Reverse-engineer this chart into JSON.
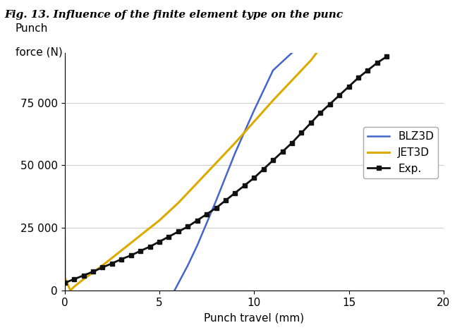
{
  "title": "Fig. 13. Influence of the finite element type on the punc",
  "ylabel_line1": "Punch",
  "ylabel_line2": "force (N)",
  "xlabel": "Punch travel (mm)",
  "xlim": [
    0,
    20
  ],
  "ylim": [
    0,
    95000
  ],
  "yticks": [
    0,
    25000,
    50000,
    75000
  ],
  "ytick_labels": [
    "0",
    "25 000",
    "50 000",
    "75 000"
  ],
  "xticks": [
    0,
    5,
    10,
    15,
    20
  ],
  "blz3d": {
    "x": [
      5.8,
      6.5,
      7.0,
      8.0,
      9.0,
      10.0,
      11.0,
      12.0,
      12.15
    ],
    "y": [
      0,
      10000,
      18000,
      36000,
      55000,
      72000,
      88000,
      95000,
      96000
    ],
    "color": "#4466cc",
    "label": "BLZ3D",
    "linewidth": 1.8
  },
  "jet3d": {
    "x": [
      0.0,
      0.02,
      0.3,
      0.5,
      1.0,
      2.0,
      3.0,
      4.0,
      5.0,
      6.0,
      7.0,
      8.0,
      9.0,
      10.0,
      11.0,
      12.0,
      13.0,
      13.3
    ],
    "y": [
      28000,
      5000,
      0,
      1500,
      4500,
      10000,
      16000,
      22000,
      28000,
      35000,
      43000,
      51000,
      59000,
      67500,
      76000,
      84000,
      92000,
      95000
    ],
    "color": "#ddaa00",
    "label": "JET3D",
    "linewidth": 2.2
  },
  "exp": {
    "x": [
      0.0,
      0.5,
      1.0,
      1.5,
      2.0,
      2.5,
      3.0,
      3.5,
      4.0,
      4.5,
      5.0,
      5.5,
      6.0,
      6.5,
      7.0,
      7.5,
      8.0,
      8.5,
      9.0,
      9.5,
      10.0,
      10.5,
      11.0,
      11.5,
      12.0,
      12.5,
      13.0,
      13.5,
      14.0,
      14.5,
      15.0,
      15.5,
      16.0,
      16.5,
      17.0
    ],
    "y": [
      3000,
      4500,
      6000,
      7500,
      9200,
      10800,
      12500,
      14000,
      15800,
      17500,
      19500,
      21500,
      23500,
      25500,
      28000,
      30500,
      33000,
      36000,
      39000,
      42000,
      45000,
      48500,
      52000,
      55500,
      59000,
      63000,
      67000,
      71000,
      74500,
      78000,
      81500,
      85000,
      88000,
      91000,
      93500
    ],
    "color": "#111111",
    "label": "Exp.",
    "linewidth": 2.0,
    "marker": "s",
    "markersize": 5
  },
  "background_color": "#ffffff",
  "grid_color": "#cccccc"
}
